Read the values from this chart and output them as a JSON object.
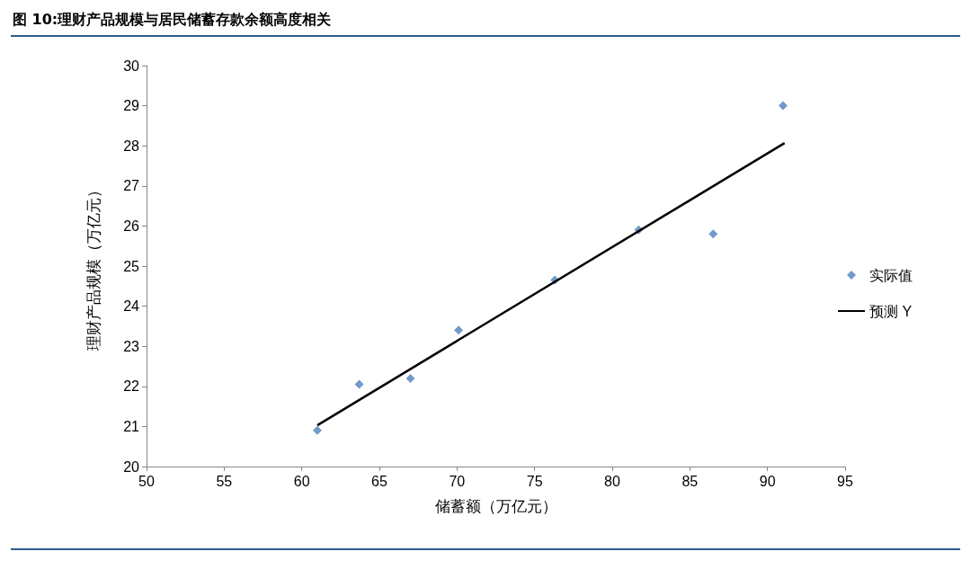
{
  "chart_data": {
    "type": "scatter",
    "title": "图 10:理财产品规模与居民储蓄存款余额高度相关",
    "xlabel": "储蓄额（万亿元）",
    "ylabel": "理财产品规模（万亿元）",
    "xlim": [
      50,
      95
    ],
    "xticks": [
      50,
      55,
      60,
      65,
      70,
      75,
      80,
      85,
      90,
      95
    ],
    "ylim": [
      20,
      30
    ],
    "yticks": [
      20,
      21,
      22,
      23,
      24,
      25,
      26,
      27,
      28,
      29,
      30
    ],
    "grid": false,
    "legend": "right",
    "marker": "diamond",
    "series": [
      {
        "name": "实际值",
        "color": "#4f81bd",
        "x": [
          61.0,
          63.7,
          67.0,
          70.1,
          76.3,
          81.7,
          86.5,
          91.0
        ],
        "values": [
          20.9,
          22.05,
          22.2,
          23.4,
          24.65,
          25.9,
          25.8,
          29.0
        ]
      },
      {
        "name": "预测 Y",
        "type": "line",
        "color": "#000000",
        "marker": "none",
        "line_style": "solid",
        "x": [
          61.0,
          91.1
        ],
        "values": [
          21.03,
          28.07
        ]
      }
    ]
  }
}
